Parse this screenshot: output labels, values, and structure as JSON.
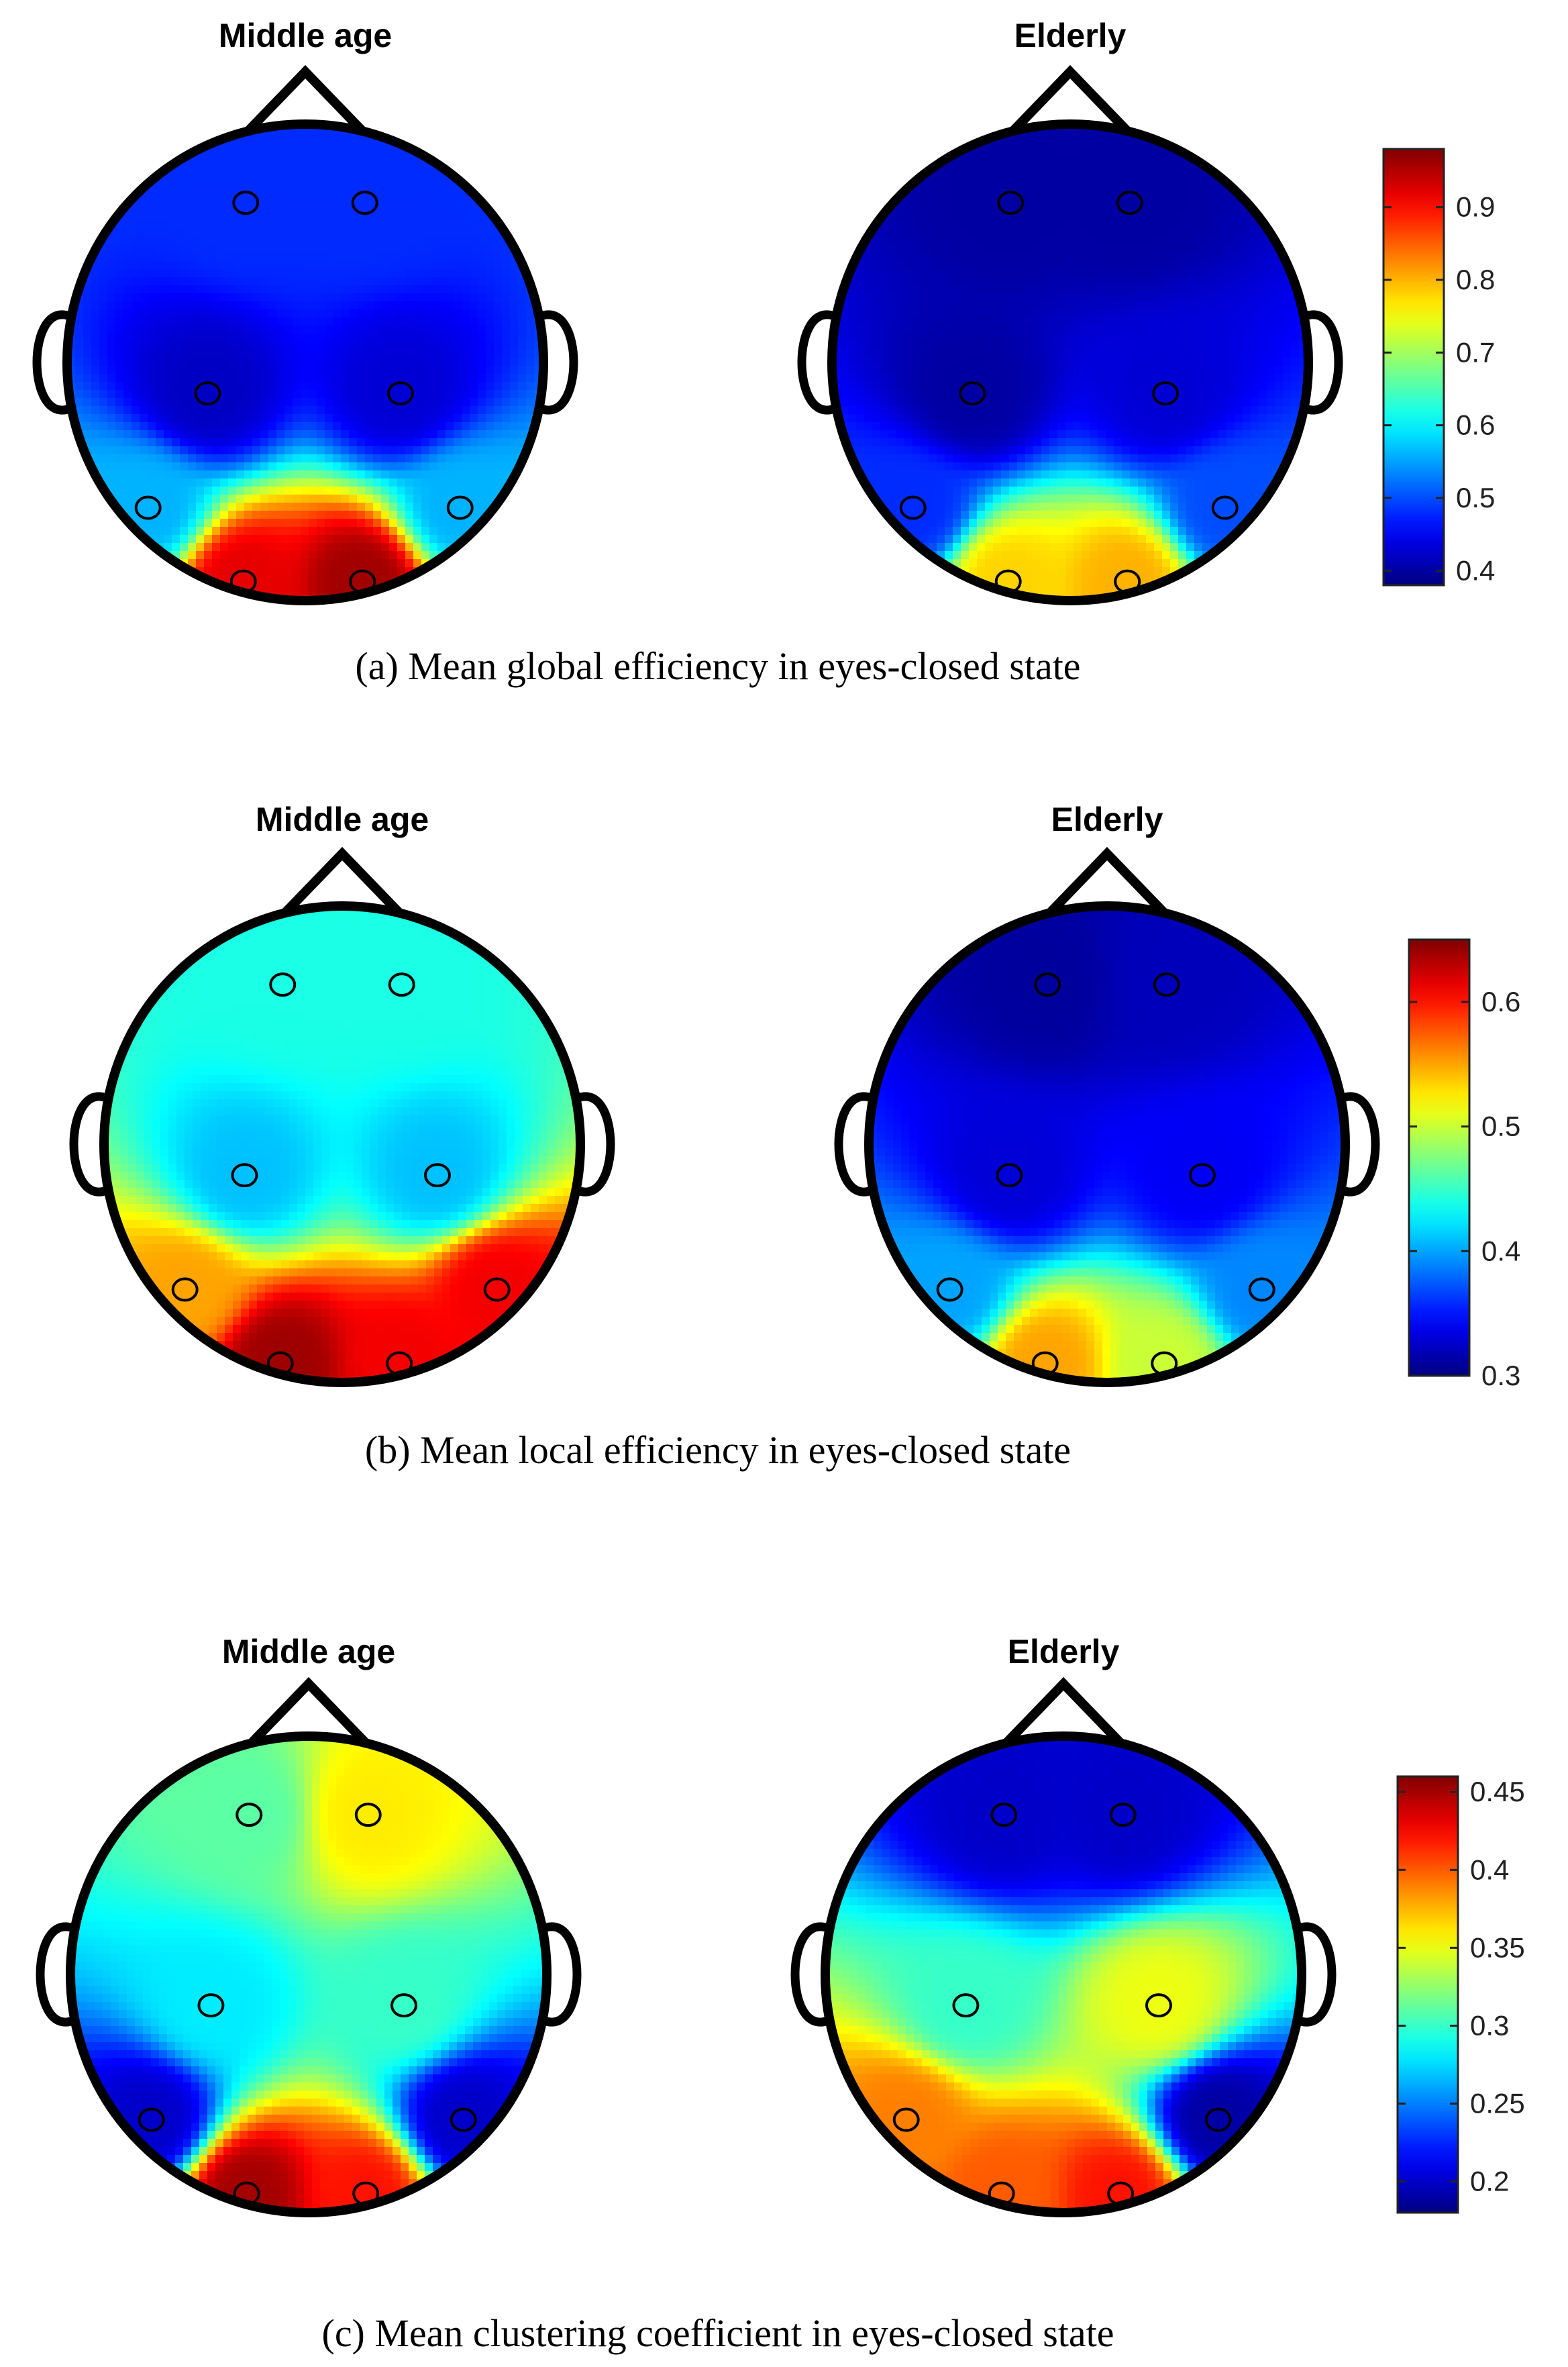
{
  "figure": {
    "panels": [
      {
        "id": "a",
        "caption": "(a) Mean global efficiency in eyes-closed state"
      },
      {
        "id": "b",
        "caption": "(b) Mean local efficiency in eyes-closed state"
      },
      {
        "id": "c",
        "caption": "(c) Mean clustering coefficient in eyes-closed state"
      }
    ]
  },
  "chart_data": [
    {
      "type": "heatmap",
      "subtype": "scalp-topographic-map",
      "title": "(a) Mean global efficiency in eyes-closed state",
      "colormap": "jet",
      "colorbar": {
        "range": [
          0.38,
          0.98
        ],
        "ticks": [
          "0.9",
          "0.8",
          "0.7",
          "0.6",
          "0.5",
          "0.4"
        ]
      },
      "electrode_order": [
        "front-left",
        "front-right",
        "mid-left",
        "mid-right",
        "lateral-left",
        "lateral-right",
        "back-left",
        "back-right"
      ],
      "groups": [
        {
          "name": "Middle age",
          "values": [
            0.48,
            0.48,
            0.42,
            0.43,
            0.56,
            0.56,
            0.92,
            0.96
          ]
        },
        {
          "name": "Elderly",
          "values": [
            0.4,
            0.4,
            0.4,
            0.43,
            0.48,
            0.5,
            0.78,
            0.8
          ]
        }
      ]
    },
    {
      "type": "heatmap",
      "subtype": "scalp-topographic-map",
      "title": "(b) Mean local efficiency in eyes-closed state",
      "colormap": "jet",
      "colorbar": {
        "range": [
          0.3,
          0.65
        ],
        "ticks": [
          "0.6",
          "0.5",
          "0.4",
          "0.3"
        ]
      },
      "electrode_order": [
        "front-left",
        "front-right",
        "mid-left",
        "mid-right",
        "lateral-left",
        "lateral-right",
        "back-left",
        "back-right"
      ],
      "groups": [
        {
          "name": "Middle age",
          "values": [
            0.44,
            0.44,
            0.41,
            0.41,
            0.55,
            0.61,
            0.64,
            0.61
          ]
        },
        {
          "name": "Elderly",
          "values": [
            0.31,
            0.32,
            0.33,
            0.34,
            0.4,
            0.39,
            0.55,
            0.5
          ]
        }
      ]
    },
    {
      "type": "heatmap",
      "subtype": "scalp-topographic-map",
      "title": "(c) Mean clustering coefficient in eyes-closed state",
      "colormap": "jet",
      "colorbar": {
        "range": [
          0.18,
          0.46
        ],
        "ticks": [
          "0.45",
          "0.4",
          "0.35",
          "0.3",
          "0.25",
          "0.2"
        ]
      },
      "electrode_order": [
        "front-left",
        "front-right",
        "mid-left",
        "mid-right",
        "lateral-left",
        "lateral-right",
        "back-left",
        "back-right"
      ],
      "groups": [
        {
          "name": "Middle age",
          "values": [
            0.31,
            0.36,
            0.28,
            0.3,
            0.2,
            0.2,
            0.45,
            0.42
          ]
        },
        {
          "name": "Elderly",
          "values": [
            0.2,
            0.2,
            0.3,
            0.35,
            0.39,
            0.19,
            0.4,
            0.42
          ]
        }
      ]
    }
  ]
}
